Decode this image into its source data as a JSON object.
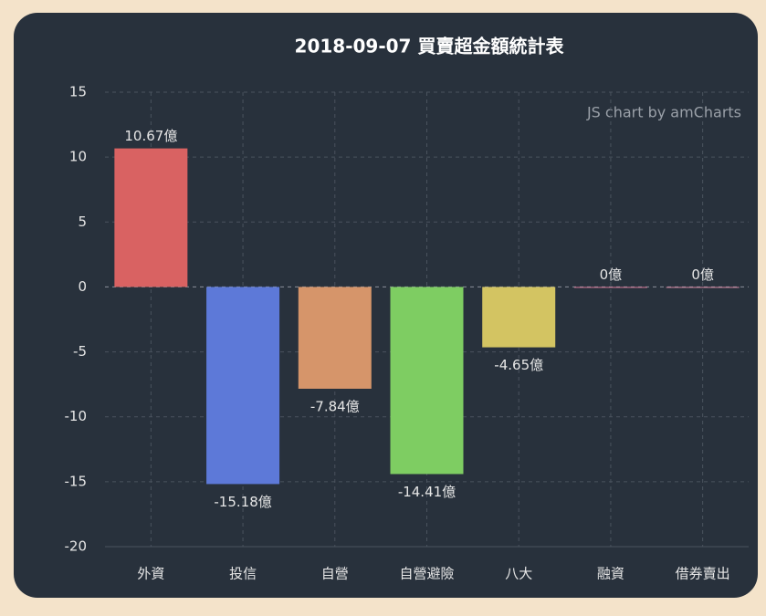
{
  "chart_data": {
    "type": "bar",
    "title": "2018-09-07 買賣超金額統計表",
    "credit": "JS chart by amCharts",
    "categories": [
      "外資",
      "投信",
      "自營",
      "自營避險",
      "八大",
      "融資",
      "借券賣出"
    ],
    "values": [
      10.67,
      -15.18,
      -7.84,
      -14.41,
      -4.65,
      0,
      0
    ],
    "value_labels": [
      "10.67億",
      "-15.18億",
      "-7.84億",
      "-14.41億",
      "-4.65億",
      "0億",
      "0億"
    ],
    "colors": [
      "#d96262",
      "#5d79d8",
      "#d6956a",
      "#7ecd62",
      "#d3c462",
      "#d97a9a",
      "#d98aa6"
    ],
    "ylim": [
      -20,
      15
    ],
    "yticks": [
      -20,
      -15,
      -10,
      -5,
      0,
      5,
      10,
      15
    ],
    "grid": true
  }
}
